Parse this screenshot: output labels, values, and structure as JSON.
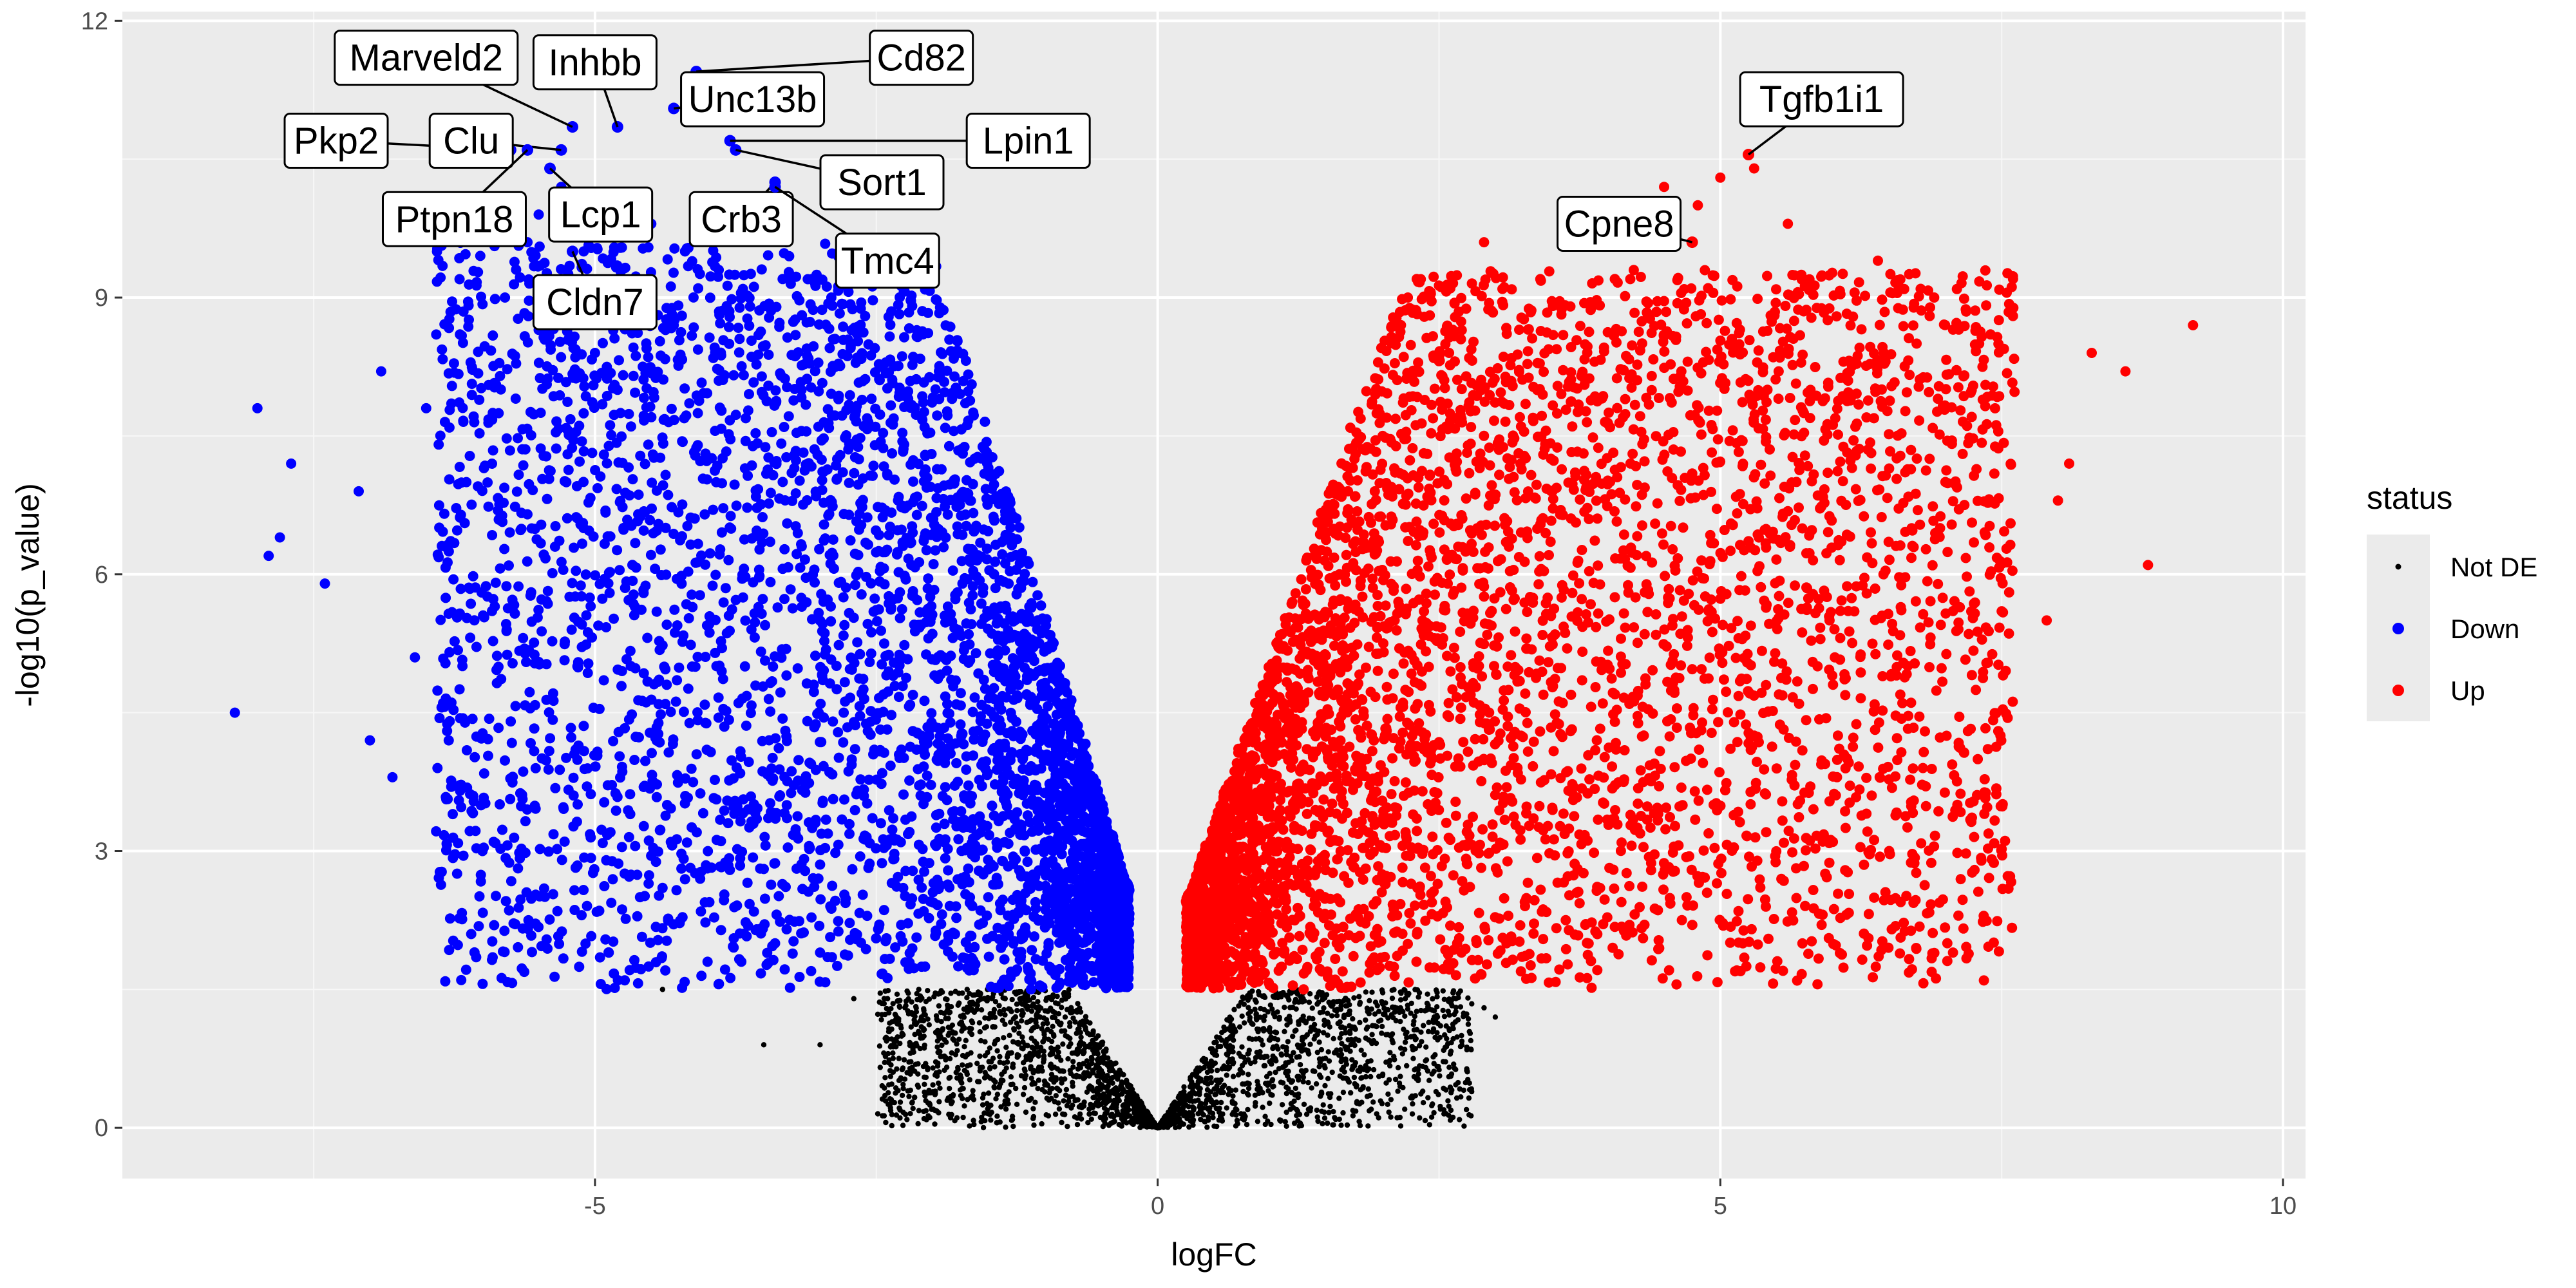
{
  "chart_data": {
    "type": "scatter",
    "title": "",
    "xlabel": "logFC",
    "ylabel": "-log10(p_value)",
    "xlim": [
      -9.2,
      10.2
    ],
    "ylim": [
      -0.55,
      12.1
    ],
    "x_ticks": [
      -5,
      0,
      5,
      10
    ],
    "y_ticks": [
      0,
      3,
      6,
      9,
      12
    ],
    "grid": true,
    "background": "#ebebeb",
    "legend": {
      "title": "status",
      "position": "right",
      "items": [
        {
          "label": "Not DE",
          "color": "#000000",
          "size": "small"
        },
        {
          "label": "Down",
          "color": "#0000ff",
          "size": "large"
        },
        {
          "label": "Up",
          "color": "#ff0000",
          "size": "large"
        }
      ]
    },
    "threshold_p": 1.5,
    "series": [
      {
        "name": "Down",
        "color": "#0000ff",
        "points": [
          [
            -8.2,
            4.5
          ],
          [
            -7.8,
            6.4
          ],
          [
            -7.7,
            7.2
          ],
          [
            -7.4,
            5.9
          ],
          [
            -7.0,
            4.2
          ],
          [
            -6.8,
            3.8
          ],
          [
            -6.6,
            5.1
          ],
          [
            -6.4,
            3.9
          ],
          [
            -6.1,
            2.1
          ],
          [
            -6.0,
            3.0
          ],
          [
            -5.9,
            3.1
          ],
          [
            -7.1,
            6.9
          ],
          [
            -6.9,
            8.2
          ],
          [
            -6.5,
            7.8
          ],
          [
            -6.2,
            8.6
          ],
          [
            -5.8,
            9.0
          ],
          [
            -5.6,
            9.6
          ],
          [
            -5.3,
            10.2
          ],
          [
            -5.5,
            9.9
          ],
          [
            -5.1,
            9.5
          ],
          [
            -4.9,
            2.9
          ],
          [
            -4.6,
            2.5
          ],
          [
            -4.4,
            2.6
          ],
          [
            -4.0,
            1.8
          ],
          [
            -3.7,
            1.8
          ],
          [
            -3.4,
            2.0
          ],
          [
            -3.0,
            1.9
          ],
          [
            -2.9,
            9.0
          ],
          [
            -2.6,
            8.8
          ],
          [
            -3.3,
            9.6
          ],
          [
            -3.9,
            9.3
          ],
          [
            -4.2,
            9.5
          ],
          [
            -4.5,
            9.8
          ],
          [
            -4.7,
            10.1
          ],
          [
            -8.0,
            7.8
          ],
          [
            -7.9,
            6.2
          ],
          [
            -6.3,
            4.2
          ],
          [
            -5.0,
            8.4
          ],
          [
            -4.8,
            8.0
          ],
          [
            -4.3,
            8.7
          ]
        ],
        "filler": {
          "count": 4200,
          "x_range": [
            -6.4,
            -0.25
          ],
          "note": "dense cloud following |logFC| boundary"
        }
      },
      {
        "name": "Up",
        "color": "#ff0000",
        "points": [
          [
            9.2,
            8.7
          ],
          [
            8.8,
            6.1
          ],
          [
            8.6,
            8.2
          ],
          [
            8.1,
            7.2
          ],
          [
            8.0,
            6.8
          ],
          [
            7.9,
            5.5
          ],
          [
            7.5,
            5.6
          ],
          [
            7.2,
            4.3
          ],
          [
            6.8,
            3.9
          ],
          [
            6.5,
            3.0
          ],
          [
            6.0,
            3.1
          ],
          [
            5.9,
            2.2
          ],
          [
            5.8,
            3.7
          ],
          [
            5.6,
            9.8
          ],
          [
            5.3,
            10.4
          ],
          [
            5.0,
            10.3
          ],
          [
            4.8,
            10.0
          ],
          [
            4.6,
            9.6
          ],
          [
            4.5,
            10.2
          ],
          [
            4.2,
            9.2
          ],
          [
            3.8,
            9.7
          ],
          [
            3.4,
            9.2
          ],
          [
            2.9,
            9.6
          ],
          [
            2.6,
            9.1
          ],
          [
            7.6,
            8.8
          ],
          [
            8.3,
            8.4
          ],
          [
            7.3,
            8.5
          ],
          [
            6.9,
            9.0
          ],
          [
            6.4,
            9.4
          ],
          [
            5.2,
            2.0
          ],
          [
            4.7,
            2.5
          ],
          [
            3.8,
            2.2
          ],
          [
            3.1,
            2.0
          ],
          [
            2.7,
            1.9
          ],
          [
            2.3,
            1.8
          ],
          [
            6.2,
            7.6
          ],
          [
            7.0,
            7.0
          ],
          [
            6.7,
            6.5
          ]
        ],
        "filler": {
          "count": 4600,
          "x_range": [
            0.25,
            7.6
          ],
          "note": "dense cloud following |logFC| boundary"
        }
      },
      {
        "name": "Not DE",
        "color": "#000000",
        "points": [
          [
            -4.4,
            1.5
          ],
          [
            -3.5,
            0.9
          ],
          [
            -3.0,
            0.9
          ],
          [
            -2.7,
            1.4
          ],
          [
            -2.4,
            1.4
          ],
          [
            2.9,
            1.3
          ],
          [
            3.0,
            1.2
          ],
          [
            2.7,
            1.0
          ],
          [
            2.6,
            0.8
          ],
          [
            -2.1,
            1.2
          ],
          [
            2.2,
            1.4
          ]
        ],
        "filler": {
          "count": 2600,
          "x_range": [
            -2.6,
            2.9
          ],
          "note": "v-shaped band below threshold"
        }
      }
    ],
    "annotations": [
      {
        "label": "Marveld2",
        "point": [
          -5.2,
          10.85
        ],
        "box": [
          -6.5,
          11.6
        ]
      },
      {
        "label": "Inhbb",
        "point": [
          -4.8,
          10.85
        ],
        "box": [
          -5.0,
          11.55
        ]
      },
      {
        "label": "Cd82",
        "point": [
          -4.1,
          11.45
        ],
        "box": [
          -2.1,
          11.6
        ]
      },
      {
        "label": "Unc13b",
        "point": [
          -4.3,
          11.05
        ],
        "box": [
          -3.6,
          11.15
        ]
      },
      {
        "label": "Pkp2",
        "point": [
          -5.75,
          10.6
        ],
        "box": [
          -7.3,
          10.7
        ]
      },
      {
        "label": "Clu",
        "point": [
          -5.3,
          10.6
        ],
        "box": [
          -6.1,
          10.7
        ]
      },
      {
        "label": "Lpin1",
        "point": [
          -3.8,
          10.7
        ],
        "box": [
          -1.15,
          10.7
        ]
      },
      {
        "label": "Sort1",
        "point": [
          -3.75,
          10.6
        ],
        "box": [
          -2.45,
          10.25
        ]
      },
      {
        "label": "Ptpn18",
        "point": [
          -5.6,
          10.6
        ],
        "box": [
          -6.25,
          9.85
        ]
      },
      {
        "label": "Lcp1",
        "point": [
          -5.4,
          10.4
        ],
        "box": [
          -4.95,
          9.9
        ]
      },
      {
        "label": "Crb3",
        "point": [
          -3.4,
          10.25
        ],
        "box": [
          -3.7,
          9.85
        ]
      },
      {
        "label": "Tmc4",
        "point": [
          -3.4,
          10.2
        ],
        "box": [
          -2.4,
          9.4
        ]
      },
      {
        "label": "Cldn7",
        "point": [
          -5.2,
          9.5
        ],
        "box": [
          -5.0,
          8.95
        ]
      },
      {
        "label": "Tgfb1i1",
        "point": [
          5.25,
          10.55
        ],
        "box": [
          5.9,
          11.15
        ]
      },
      {
        "label": "Cpne8",
        "point": [
          4.75,
          9.6
        ],
        "box": [
          4.1,
          9.8
        ]
      }
    ]
  }
}
